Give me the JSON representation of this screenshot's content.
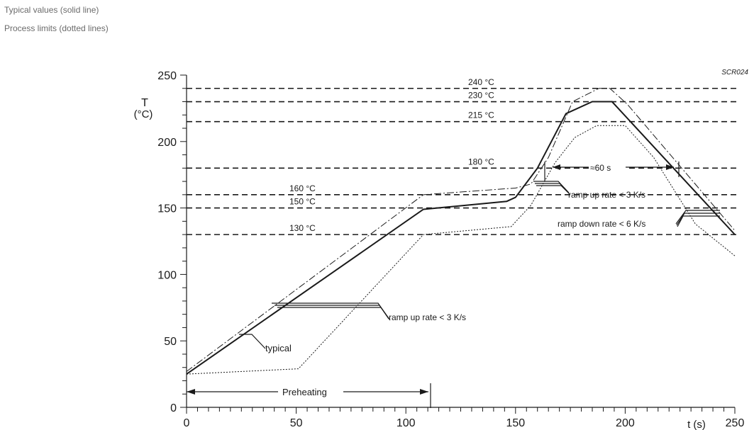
{
  "legend": {
    "typical": "Typical values (solid line)",
    "limits": "Process limits (dotted lines)"
  },
  "chart_data": {
    "type": "line",
    "code": "SCR024",
    "ylabel": "T",
    "yunit": "(°C)",
    "xlabel": "t (s)",
    "xlim": [
      0,
      250
    ],
    "ylim": [
      0,
      250
    ],
    "xticks": [
      0,
      50,
      100,
      150,
      200,
      250
    ],
    "yticks": [
      0,
      50,
      100,
      150,
      200,
      250
    ],
    "reference_lines": [
      {
        "y": 240,
        "label": "240 °C"
      },
      {
        "y": 230,
        "label": "230 °C"
      },
      {
        "y": 215,
        "label": "215 °C"
      },
      {
        "y": 180,
        "label": "180 °C"
      },
      {
        "y": 160,
        "label": "160 °C"
      },
      {
        "y": 150,
        "label": "150 °C"
      },
      {
        "y": 130,
        "label": "130 °C"
      }
    ],
    "series": [
      {
        "style": "solid",
        "x": [
          0,
          108,
          146,
          150,
          160,
          173,
          185,
          194,
          250
        ],
        "y": [
          25,
          149,
          155,
          158,
          180,
          221,
          230,
          230,
          130
        ]
      },
      {
        "style": "dashdot",
        "x": [
          0,
          108,
          150,
          157,
          165,
          176,
          188,
          193,
          201,
          250
        ],
        "y": [
          27,
          160,
          165,
          168,
          188,
          230,
          240,
          240,
          228,
          133
        ]
      },
      {
        "style": "dotted",
        "x": [
          0,
          51,
          108,
          148,
          157,
          168,
          177,
          187,
          200,
          213,
          232,
          250
        ],
        "y": [
          25,
          29,
          130,
          136,
          152,
          184,
          203,
          212,
          212,
          188,
          138,
          114
        ]
      }
    ],
    "annotations": {
      "ramp_up_1": "ramp up rate < 3 K/s",
      "ramp_up_2": "ramp up rate < 3 K/s",
      "ramp_down": "ramp down rate < 6 K/s",
      "duration": "≈60 s",
      "typical": "typical",
      "preheating": "Preheating"
    }
  }
}
